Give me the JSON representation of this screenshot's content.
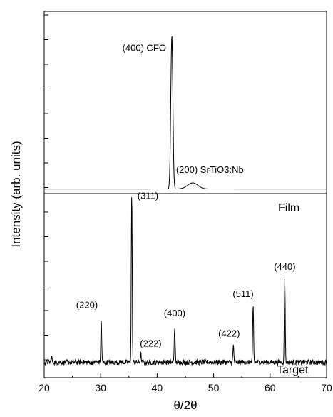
{
  "chart_data": {
    "type": "line",
    "xlabel": "θ/2θ",
    "ylabel": "Intensity (arb. units)",
    "xlim": [
      20,
      70
    ],
    "x_ticks": [
      20,
      30,
      40,
      50,
      60,
      70
    ],
    "y_tick_labels_shown": false,
    "grid": false,
    "panels": [
      {
        "name": "Film",
        "label": "Film",
        "baseline": 0.03,
        "noise": 0.0,
        "peaks": [
          {
            "x": 42.6,
            "height": 1.0,
            "width": 0.18,
            "label": "(400) CFO"
          },
          {
            "x": 46.3,
            "height": 0.04,
            "width": 0.9,
            "label": "(200) SrTiO3:Nb"
          }
        ]
      },
      {
        "name": "Target",
        "label": "Target",
        "baseline": 0.09,
        "noise": 0.015,
        "peaks": [
          {
            "x": 21.3,
            "height": 0.035,
            "width": 0.08,
            "label": ""
          },
          {
            "x": 30.1,
            "height": 0.25,
            "width": 0.08,
            "label": "(220)"
          },
          {
            "x": 35.5,
            "height": 1.0,
            "width": 0.08,
            "label": "(311)"
          },
          {
            "x": 37.1,
            "height": 0.05,
            "width": 0.08,
            "label": "(222)"
          },
          {
            "x": 43.1,
            "height": 0.21,
            "width": 0.08,
            "label": "(400)"
          },
          {
            "x": 53.5,
            "height": 0.1,
            "width": 0.08,
            "label": "(422)"
          },
          {
            "x": 57.0,
            "height": 0.33,
            "width": 0.08,
            "label": "(511)"
          },
          {
            "x": 62.6,
            "height": 0.49,
            "width": 0.08,
            "label": "(440)"
          }
        ]
      }
    ]
  }
}
